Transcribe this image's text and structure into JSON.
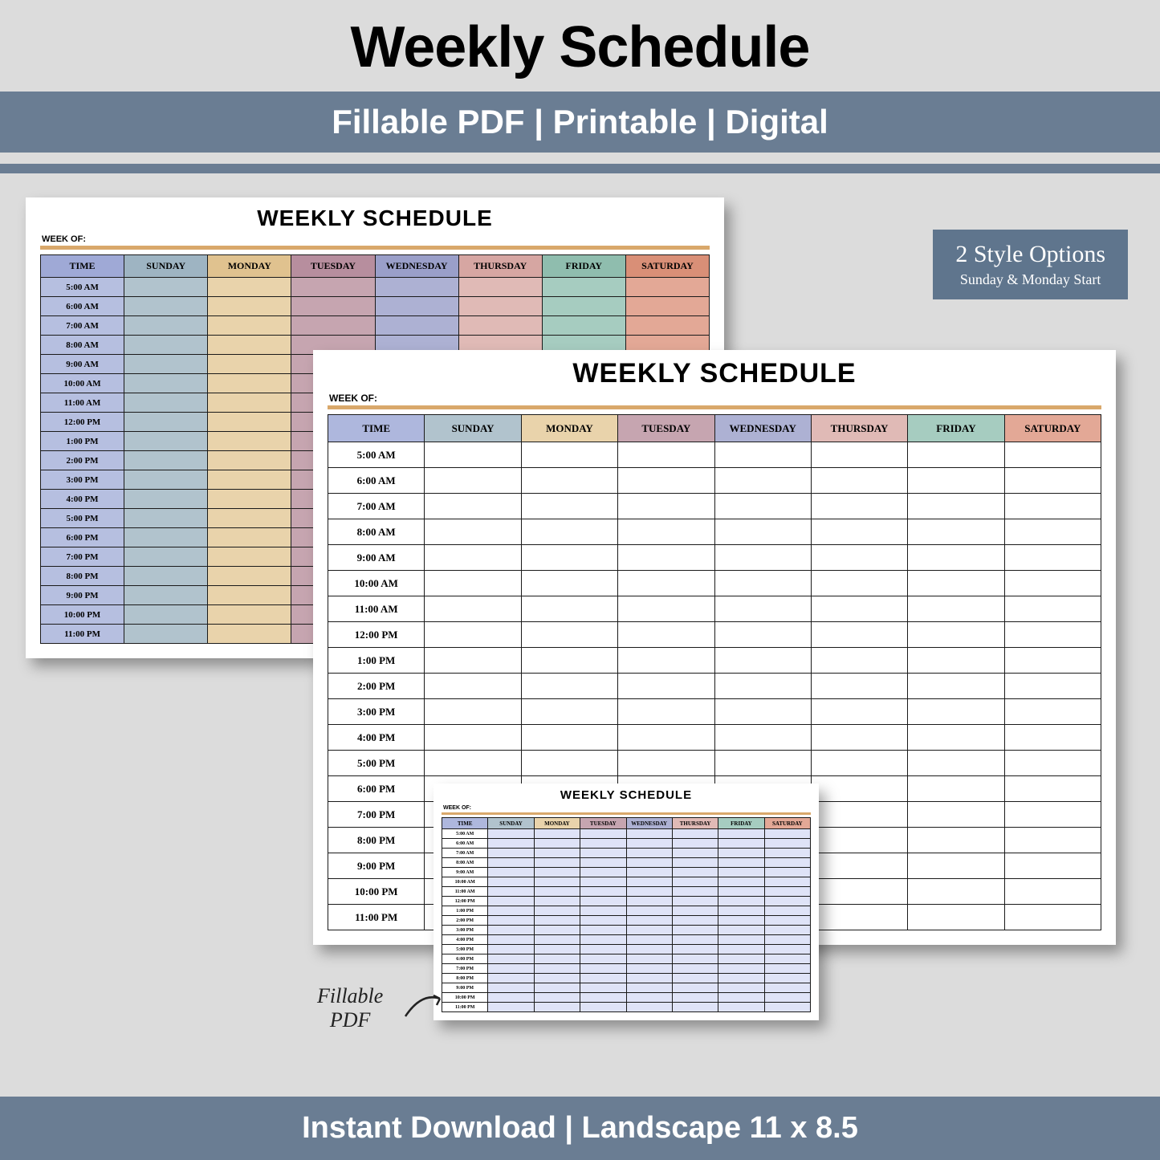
{
  "header": {
    "title": "Weekly Schedule",
    "subtitle": "Fillable PDF | Printable | Digital",
    "footer": "Instant Download | Landscape 11 x 8.5"
  },
  "styleBadge": {
    "line1": "2 Style Options",
    "line2": "Sunday & Monday Start"
  },
  "fillableNote": {
    "line1": "Fillable",
    "line2": "PDF"
  },
  "sheet": {
    "title": "WEEKLY SCHEDULE",
    "weekOfLabel": "WEEK OF:",
    "timeHeader": "TIME",
    "days": [
      "SUNDAY",
      "MONDAY",
      "TUESDAY",
      "WEDNESDAY",
      "THURSDAY",
      "FRIDAY",
      "SATURDAY"
    ],
    "times": [
      "5:00 AM",
      "6:00 AM",
      "7:00 AM",
      "8:00 AM",
      "9:00 AM",
      "10:00 AM",
      "11:00 AM",
      "12:00 PM",
      "1:00 PM",
      "2:00 PM",
      "3:00 PM",
      "4:00 PM",
      "5:00 PM",
      "6:00 PM",
      "7:00 PM",
      "8:00 PM",
      "9:00 PM",
      "10:00 PM",
      "11:00 PM"
    ]
  },
  "colors": {
    "band": "#6a7d93",
    "pageBg": "#dcdcdc",
    "orangeRule": "#d9a86b",
    "headerCols": [
      "#9fa9d6",
      "#9eb4c2",
      "#e0c28f",
      "#b78e9e",
      "#9a9fc9",
      "#d6a6a2",
      "#8fbdae",
      "#d98f77"
    ],
    "bodyCols": [
      "#b6bfe0",
      "#b1c3cd",
      "#e9d3ab",
      "#c6a5b0",
      "#adb1d3",
      "#e0bab6",
      "#a6ccc0",
      "#e3a896"
    ],
    "sheetBheaders": [
      "#aeb7dd",
      "#b1c3cd",
      "#e9d3ab",
      "#c6a5b0",
      "#adb1d3",
      "#e0bab6",
      "#a6ccc0",
      "#e3a896"
    ],
    "fillCell": "#dfe3f7"
  }
}
